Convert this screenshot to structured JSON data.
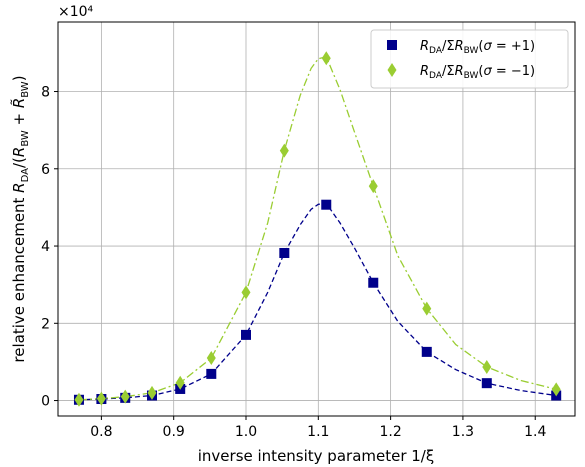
{
  "chart_data": {
    "type": "scatter",
    "multiplier_label": "×10⁴",
    "xlabel": "inverse intensity parameter 1/ξ",
    "ylabel": "relative enhancement R_DA/(R_BW + R̃_BW)",
    "xlim": [
      0.74,
      1.455
    ],
    "ylim": [
      -0.4,
      9.8
    ],
    "y_scale_factor": 10000,
    "x_ticks": [
      0.8,
      0.9,
      1.0,
      1.1,
      1.2,
      1.3,
      1.4
    ],
    "x_tick_labels": [
      "0.8",
      "0.9",
      "1.0",
      "1.1",
      "1.2",
      "1.3",
      "1.4"
    ],
    "y_ticks": [
      0,
      2,
      4,
      6,
      8
    ],
    "y_tick_labels": [
      "0",
      "2",
      "4",
      "6",
      "8"
    ],
    "grid": true,
    "legend_position": "top-right",
    "series": [
      {
        "name": "R_DA/ΣR_BW(σ = +1)",
        "marker": "square",
        "color": "#00008b",
        "line_style": "dashed",
        "x": [
          0.769,
          0.8,
          0.833,
          0.87,
          0.909,
          0.952,
          1.0,
          1.053,
          1.111,
          1.176,
          1.25,
          1.333,
          1.429
        ],
        "y": [
          0.02,
          0.04,
          0.07,
          0.13,
          0.3,
          0.69,
          1.7,
          3.82,
          5.07,
          3.05,
          1.26,
          0.45,
          0.13
        ]
      },
      {
        "name": "R_DA/ΣR_BW(σ = −1)",
        "marker": "diamond",
        "color": "#9acd32",
        "line_style": "dashdot",
        "x": [
          0.769,
          0.8,
          0.833,
          0.87,
          0.909,
          0.952,
          1.0,
          1.053,
          1.111,
          1.176,
          1.25,
          1.333,
          1.429
        ],
        "y": [
          0.02,
          0.05,
          0.1,
          0.2,
          0.46,
          1.1,
          2.8,
          6.47,
          8.86,
          5.55,
          2.38,
          0.87,
          0.29
        ]
      }
    ],
    "curves": [
      {
        "series": 0,
        "x": [
          0.769,
          0.8,
          0.833,
          0.87,
          0.909,
          0.952,
          1.0,
          1.03,
          1.053,
          1.075,
          1.09,
          1.1,
          1.111,
          1.13,
          1.15,
          1.176,
          1.21,
          1.25,
          1.29,
          1.333,
          1.38,
          1.429
        ],
        "y": [
          0.02,
          0.04,
          0.07,
          0.13,
          0.3,
          0.69,
          1.7,
          2.8,
          3.82,
          4.55,
          4.95,
          5.08,
          5.1,
          4.6,
          3.95,
          3.05,
          2.05,
          1.26,
          0.8,
          0.45,
          0.26,
          0.13
        ]
      },
      {
        "series": 1,
        "x": [
          0.769,
          0.8,
          0.833,
          0.87,
          0.909,
          0.952,
          1.0,
          1.03,
          1.053,
          1.075,
          1.09,
          1.1,
          1.111,
          1.13,
          1.15,
          1.176,
          1.21,
          1.25,
          1.29,
          1.333,
          1.38,
          1.429
        ],
        "y": [
          0.02,
          0.05,
          0.1,
          0.2,
          0.46,
          1.1,
          2.8,
          4.6,
          6.47,
          7.9,
          8.6,
          8.85,
          8.9,
          8.05,
          6.95,
          5.55,
          3.75,
          2.38,
          1.45,
          0.87,
          0.52,
          0.29
        ]
      }
    ]
  }
}
